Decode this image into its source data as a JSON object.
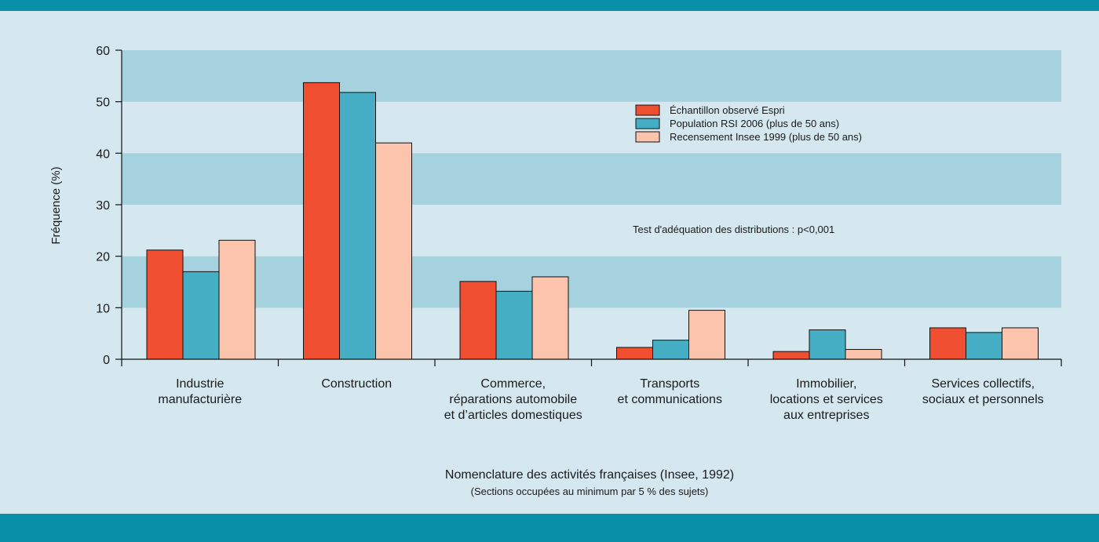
{
  "colors": {
    "frame": "#0a8fa8",
    "background": "#d5e8ef",
    "band": "#a5d2de",
    "series": [
      "#f04e31",
      "#46aec4",
      "#fcc4ac"
    ]
  },
  "chart_data": {
    "type": "bar",
    "ylabel": "Fréquence (%)",
    "xlabel": "Nomenclature des activités françaises (Insee, 1992)",
    "xlabel_sub": "(Sections occupées au minimum par 5 % des sujets)",
    "annotation": "Test d'adéquation des distributions : p<0,001",
    "ylim": [
      0,
      60
    ],
    "yticks": [
      0,
      10,
      20,
      30,
      40,
      50,
      60
    ],
    "grid": "alternating horizontal bands",
    "legend_position": "top-right",
    "categories": [
      [
        "Industrie",
        "manufacturière"
      ],
      [
        "Construction"
      ],
      [
        "Commerce,",
        "réparations automobile",
        "et d’articles domestiques"
      ],
      [
        "Transports",
        "et communications"
      ],
      [
        "Immobilier,",
        "locations et services",
        "aux entreprises"
      ],
      [
        "Services collectifs,",
        "sociaux et personnels"
      ]
    ],
    "series": [
      {
        "name": "Échantillon observé Espri",
        "values": [
          21.2,
          53.7,
          15.1,
          2.3,
          1.5,
          6.1
        ]
      },
      {
        "name": "Population RSI 2006 (plus de 50 ans)",
        "values": [
          17.0,
          51.8,
          13.2,
          3.7,
          5.7,
          5.2
        ]
      },
      {
        "name": "Recensement Insee 1999 (plus de 50 ans)",
        "values": [
          23.1,
          42.0,
          16.0,
          9.5,
          1.9,
          6.1
        ]
      }
    ]
  }
}
